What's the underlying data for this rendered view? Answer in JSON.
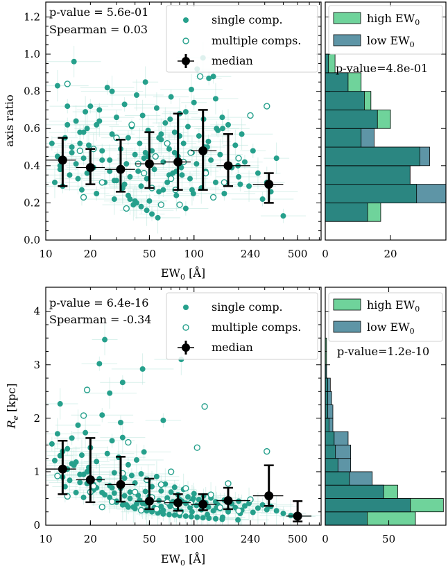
{
  "colors": {
    "single": "#26a08c",
    "multiple_edge": "#26a08c",
    "error_bar": "#b9e6dd",
    "median": "#000000",
    "high_ew_fill": "#6fd39b",
    "low_ew_fill": "#5e95a6",
    "overlap_fill": "#2b8681",
    "legend_edge": "#d0d0d0"
  },
  "chart_data": [
    {
      "type": "scatter",
      "panel": "top-scatter",
      "xlabel": "EW0 [Å]",
      "ylabel": "axis ratio",
      "xscale": "log",
      "xlim": [
        10,
        720
      ],
      "ylim": [
        0.0,
        1.28
      ],
      "xticks": [
        10,
        20,
        50,
        100,
        240,
        500
      ],
      "xtick_labels": [
        "10",
        "20",
        "50",
        "100",
        "240",
        "500"
      ],
      "yticks": [
        0.0,
        0.2,
        0.4,
        0.6,
        0.8,
        1.0,
        1.2
      ],
      "ytick_labels": [
        "0.0",
        "0.2",
        "0.4",
        "0.6",
        "0.8",
        "1.0",
        "1.2"
      ],
      "annotations": [
        "p-value = 5.6e-01",
        "Spearman = 0.03"
      ],
      "legend": {
        "loc": "upper right",
        "entries": [
          "single comp.",
          "multiple comps.",
          "median"
        ]
      },
      "single": {
        "x": [
          11,
          11.5,
          12,
          12.5,
          13,
          13.5,
          14,
          14.5,
          15,
          15.5,
          16,
          16.5,
          17,
          17.5,
          18,
          18.5,
          19,
          19.5,
          20,
          21,
          22,
          23,
          24,
          25,
          26,
          27,
          28,
          29,
          30,
          31,
          32,
          33,
          34,
          35,
          36,
          37,
          38,
          39,
          40,
          41,
          42,
          43,
          44,
          45,
          46,
          47,
          48,
          49,
          50,
          52,
          54,
          56,
          58,
          60,
          62,
          64,
          66,
          68,
          70,
          72,
          74,
          76,
          78,
          80,
          82,
          85,
          88,
          91,
          94,
          97,
          100,
          104,
          108,
          112,
          116,
          120,
          125,
          130,
          135,
          140,
          145,
          150,
          160,
          170,
          180,
          190,
          200,
          210,
          220,
          235,
          250,
          270,
          290,
          310,
          330,
          360,
          400,
          12,
          14,
          16,
          18,
          21,
          24,
          27,
          30,
          33,
          36,
          40,
          44,
          48,
          52,
          57,
          62,
          68,
          74,
          80,
          88,
          96,
          105,
          115,
          126,
          140,
          155,
          12.5,
          15,
          19,
          23,
          28,
          34,
          41,
          49,
          58,
          69,
          83,
          99,
          118,
          142,
          170,
          205,
          13,
          17,
          22,
          29,
          37,
          47,
          60,
          76,
          97,
          123,
          156,
          198
        ],
        "y": [
          0.52,
          0.31,
          0.45,
          0.38,
          0.29,
          0.55,
          0.62,
          0.35,
          0.47,
          0.96,
          0.41,
          0.33,
          0.58,
          0.27,
          0.44,
          0.69,
          0.36,
          0.51,
          0.72,
          0.39,
          0.25,
          0.64,
          0.48,
          0.31,
          0.82,
          0.43,
          0.57,
          0.22,
          0.66,
          0.38,
          0.49,
          0.28,
          0.73,
          0.41,
          0.55,
          0.34,
          0.61,
          0.19,
          0.46,
          0.78,
          0.37,
          0.52,
          0.29,
          0.67,
          0.44,
          0.85,
          0.33,
          0.59,
          0.21,
          0.48,
          0.38,
          0.71,
          0.26,
          0.54,
          0.42,
          0.63,
          0.31,
          0.49,
          0.77,
          0.36,
          0.58,
          0.24,
          0.45,
          0.68,
          0.39,
          0.52,
          0.17,
          0.61,
          0.33,
          0.47,
          0.74,
          0.41,
          0.56,
          0.28,
          0.65,
          0.37,
          0.53,
          0.43,
          0.88,
          0.31,
          0.59,
          0.46,
          0.25,
          0.62,
          0.39,
          0.51,
          0.34,
          0.57,
          0.42,
          0.29,
          0.48,
          0.36,
          0.22,
          0.31,
          0.26,
          0.44,
          0.13,
          0.83,
          0.72,
          0.64,
          0.58,
          0.49,
          0.43,
          0.37,
          0.32,
          0.28,
          0.24,
          0.21,
          0.18,
          0.16,
          0.14,
          0.12,
          0.27,
          0.35,
          0.47,
          0.56,
          0.69,
          0.81,
          0.92,
          0.98,
          0.87,
          0.76,
          0.66,
          0.4,
          0.5,
          0.6,
          0.7,
          0.8,
          0.3,
          0.2,
          0.45,
          0.55,
          0.65,
          0.35,
          0.25,
          0.5,
          0.6,
          0.4,
          0.3,
          0.42,
          0.52,
          0.62,
          0.32,
          0.22,
          0.47,
          0.57,
          0.37,
          0.27,
          0.5,
          0.6,
          0.4
        ]
      },
      "multiple": {
        "x": [
          14,
          18,
          21,
          24,
          30,
          35,
          38,
          42,
          46,
          52,
          55,
          60,
          66,
          70,
          75,
          80,
          85,
          95,
          110,
          120,
          135,
          160,
          200,
          240,
          310,
          17
        ],
        "y": [
          0.84,
          0.23,
          0.49,
          0.31,
          0.55,
          0.17,
          0.62,
          0.41,
          0.36,
          0.28,
          0.45,
          0.19,
          0.52,
          0.33,
          0.27,
          0.19,
          0.42,
          0.47,
          0.88,
          0.36,
          0.23,
          0.31,
          0.44,
          0.67,
          0.72,
          0.48
        ]
      },
      "median": {
        "x": [
          13,
          20,
          32,
          50,
          78,
          115,
          170,
          320
        ],
        "y": [
          0.43,
          0.39,
          0.38,
          0.41,
          0.42,
          0.48,
          0.4,
          0.3
        ],
        "yerr_low": [
          0.14,
          0.09,
          0.12,
          0.13,
          0.15,
          0.21,
          0.11,
          0.1
        ],
        "yerr_high": [
          0.12,
          0.1,
          0.16,
          0.17,
          0.26,
          0.22,
          0.17,
          0.06
        ],
        "x_low": [
          10,
          16,
          25,
          40,
          63,
          95,
          142,
          250
        ],
        "x_high": [
          16,
          25,
          40,
          63,
          95,
          142,
          240,
          400
        ]
      }
    },
    {
      "type": "bar",
      "orientation": "horizontal",
      "panel": "top-histogram",
      "xlim": [
        0,
        37
      ],
      "xticks": [
        0,
        20
      ],
      "xtick_labels": [
        "0",
        "20"
      ],
      "bin_edges": [
        0.1,
        0.2,
        0.3,
        0.4,
        0.5,
        0.6,
        0.7,
        0.8,
        0.9,
        1.0
      ],
      "series": [
        {
          "name": "high EW0",
          "values": [
            17,
            28,
            26,
            29,
            11,
            20,
            14,
            11,
            3
          ]
        },
        {
          "name": "low EW0",
          "values": [
            13,
            37,
            26,
            32,
            15,
            16,
            12,
            7,
            1
          ]
        }
      ],
      "legend": {
        "loc": "upper right",
        "entries": [
          "high EW0",
          "low EW0"
        ]
      },
      "annotation": "p-value=4.8e-01"
    },
    {
      "type": "scatter",
      "panel": "bottom-scatter",
      "xlabel": "EW0 [Å]",
      "ylabel": "Re [kpc]",
      "xscale": "log",
      "xlim": [
        10,
        720
      ],
      "ylim": [
        0.0,
        4.45
      ],
      "xticks": [
        10,
        20,
        50,
        100,
        240,
        500
      ],
      "xtick_labels": [
        "10",
        "20",
        "50",
        "100",
        "240",
        "500"
      ],
      "yticks": [
        0,
        1,
        2,
        3,
        4
      ],
      "ytick_labels": [
        "0",
        "1",
        "2",
        "3",
        "4"
      ],
      "annotations": [
        "p-value = 6.4e-16",
        "Spearman = -0.34"
      ],
      "legend": {
        "loc": "upper right",
        "entries": [
          "single comp.",
          "multiple comps.",
          "median"
        ]
      },
      "single": {
        "x": [
          11,
          11.5,
          12,
          12.5,
          13,
          13.5,
          14,
          14.5,
          15,
          15.5,
          16,
          16.5,
          17,
          17.5,
          18,
          18.5,
          19,
          19.5,
          20,
          21,
          22,
          23,
          24,
          25,
          26,
          27,
          28,
          29,
          30,
          31,
          32,
          33,
          34,
          35,
          36,
          37,
          38,
          39,
          40,
          41,
          42,
          43,
          44,
          45,
          46,
          47,
          48,
          49,
          50,
          52,
          54,
          56,
          58,
          60,
          62,
          64,
          66,
          68,
          70,
          72,
          74,
          76,
          78,
          80,
          82,
          85,
          88,
          91,
          94,
          97,
          100,
          104,
          108,
          112,
          116,
          120,
          125,
          130,
          135,
          140,
          145,
          150,
          160,
          170,
          180,
          190,
          200,
          210,
          220,
          235,
          250,
          270,
          290,
          310,
          330,
          360,
          400,
          450,
          500,
          12,
          14,
          16,
          18,
          21,
          24,
          27,
          30,
          33,
          36,
          40,
          44,
          48,
          52,
          57,
          62,
          68,
          74,
          80,
          88,
          96,
          105,
          115,
          126,
          140,
          155,
          25,
          33,
          45,
          62,
          82,
          12.5,
          15,
          19,
          23,
          28,
          34,
          41,
          49,
          58,
          69,
          83,
          99,
          118,
          142,
          170,
          205,
          13,
          17,
          22,
          29,
          37,
          47,
          60,
          76,
          97,
          123,
          156,
          198,
          23,
          27,
          32
        ],
        "y": [
          1.52,
          1.21,
          0.93,
          2.27,
          1.38,
          0.72,
          1.05,
          0.84,
          1.63,
          1.12,
          0.61,
          1.87,
          0.95,
          1.31,
          0.52,
          1.73,
          0.78,
          1.08,
          1.45,
          0.66,
          1.19,
          0.87,
          2.06,
          0.57,
          1.34,
          0.74,
          1.58,
          0.98,
          0.45,
          1.27,
          0.69,
          1.64,
          0.88,
          0.38,
          1.13,
          0.62,
          0.93,
          0.34,
          0.79,
          1.22,
          0.56,
          0.47,
          0.96,
          0.41,
          1.37,
          0.63,
          0.29,
          0.84,
          0.54,
          0.72,
          0.33,
          0.91,
          0.46,
          0.64,
          0.28,
          0.77,
          0.51,
          0.39,
          0.62,
          0.44,
          0.71,
          0.35,
          0.57,
          0.48,
          0.26,
          0.67,
          0.41,
          0.53,
          0.33,
          0.46,
          0.59,
          0.37,
          0.48,
          0.29,
          0.55,
          0.42,
          0.34,
          0.51,
          0.27,
          0.44,
          0.38,
          0.31,
          0.47,
          0.25,
          0.4,
          0.33,
          0.45,
          0.28,
          0.36,
          0.41,
          0.24,
          0.32,
          0.38,
          0.29,
          0.35,
          0.27,
          0.22,
          0.18,
          0.16,
          1.71,
          1.43,
          1.18,
          0.95,
          0.76,
          0.61,
          0.52,
          0.43,
          0.38,
          0.34,
          0.31,
          0.29,
          0.27,
          0.25,
          0.23,
          0.21,
          0.2,
          0.19,
          0.18,
          0.17,
          0.16,
          0.15,
          0.14,
          0.13,
          0.12,
          0.11,
          3.47,
          2.67,
          2.92,
          1.96,
          3.1,
          1.3,
          1.15,
          1.0,
          0.85,
          0.7,
          0.55,
          0.4,
          0.3,
          0.25,
          0.35,
          0.45,
          0.5,
          0.42,
          0.33,
          0.28,
          0.22,
          0.9,
          0.8,
          0.7,
          0.6,
          0.5,
          0.4,
          0.35,
          0.3,
          0.25,
          0.2,
          0.15,
          0.1,
          3.02,
          2.47,
          1.92
        ]
      },
      "multiple": {
        "x": [
          12,
          14,
          18,
          19,
          21,
          24,
          28,
          33,
          36,
          40,
          44,
          48,
          52,
          56,
          60,
          66,
          70,
          75,
          80,
          88,
          95,
          105,
          118,
          130,
          150,
          170,
          200,
          240,
          310,
          20
        ],
        "y": [
          0.92,
          0.54,
          2.05,
          2.53,
          0.73,
          0.34,
          0.44,
          0.97,
          1.55,
          0.62,
          0.28,
          0.85,
          0.52,
          0.3,
          0.76,
          0.43,
          1.0,
          0.36,
          0.24,
          0.69,
          0.41,
          1.45,
          2.22,
          0.57,
          0.33,
          0.78,
          0.27,
          0.48,
          1.38,
          0.62
        ]
      },
      "median": {
        "x": [
          13,
          20,
          32,
          50,
          78,
          115,
          170,
          320,
          500
        ],
        "y": [
          1.05,
          0.85,
          0.76,
          0.45,
          0.42,
          0.39,
          0.46,
          0.55,
          0.17
        ],
        "yerr_low": [
          0.47,
          0.42,
          0.32,
          0.15,
          0.15,
          0.11,
          0.16,
          0.19,
          0.1
        ],
        "yerr_high": [
          0.53,
          0.78,
          0.52,
          0.42,
          0.16,
          0.19,
          0.24,
          0.57,
          0.28
        ],
        "x_low": [
          10,
          16,
          25,
          40,
          63,
          95,
          142,
          250,
          420
        ],
        "x_high": [
          16,
          25,
          40,
          63,
          95,
          142,
          240,
          400,
          620
        ]
      }
    },
    {
      "type": "bar",
      "orientation": "horizontal",
      "panel": "bottom-histogram",
      "xlim": [
        0,
        95
      ],
      "xticks": [
        0,
        50
      ],
      "xtick_labels": [
        "0",
        "50"
      ],
      "bin_edges": [
        0.0,
        0.25,
        0.5,
        0.75,
        1.0,
        1.25,
        1.5,
        1.75,
        2.0,
        2.25,
        2.5,
        2.75,
        3.0,
        3.25,
        3.5
      ],
      "series": [
        {
          "name": "high EW0",
          "values": [
            71,
            93,
            57,
            19,
            10,
            8,
            7,
            3,
            2,
            2,
            2,
            1,
            1,
            1
          ]
        },
        {
          "name": "low EW0",
          "values": [
            33,
            67,
            46,
            37,
            20,
            20,
            18,
            6,
            6,
            5,
            4,
            1,
            0,
            0
          ]
        }
      ],
      "legend": {
        "loc": "upper right",
        "entries": [
          "high EW0",
          "low EW0"
        ]
      },
      "annotation": "p-value=1.2e-10"
    }
  ]
}
